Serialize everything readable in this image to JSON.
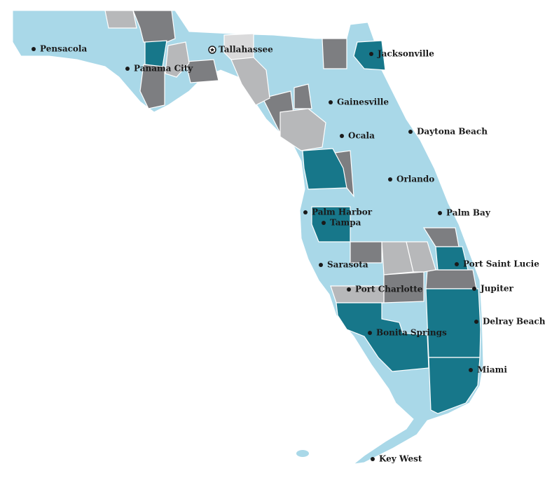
{
  "cities": [
    {
      "name": "Pensacola"
    },
    {
      "name": "Panama City"
    },
    {
      "name": "Tallahassee"
    },
    {
      "name": "Jacksonville"
    },
    {
      "name": "Gainesville"
    },
    {
      "name": "Ocala"
    },
    {
      "name": "Daytona Beach"
    },
    {
      "name": "Orlando"
    },
    {
      "name": "Palm Harbor"
    },
    {
      "name": "Tampa"
    },
    {
      "name": "Palm Bay"
    },
    {
      "name": "Sarasota"
    },
    {
      "name": "Port Saint Lucie"
    },
    {
      "name": "Port Charlotte"
    },
    {
      "name": "Jupiter"
    },
    {
      "name": "Delray Beach"
    },
    {
      "name": "Bonita Springs"
    },
    {
      "name": "Miami"
    },
    {
      "name": "Key West"
    }
  ]
}
